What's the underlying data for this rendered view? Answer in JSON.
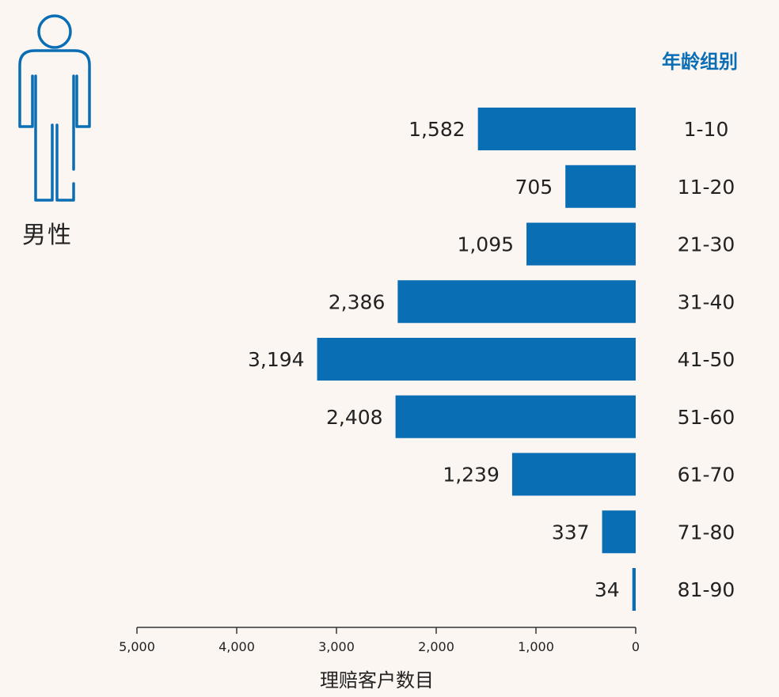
{
  "colors": {
    "bar": "#0a6eb4",
    "accent": "#0a6eb4",
    "text": "#222222",
    "background": "#fcf6f3"
  },
  "icon": "male-person-icon",
  "chart_data": {
    "type": "bar",
    "orientation": "horizontal",
    "direction": "right-to-left",
    "title": "",
    "gender_label": "男性",
    "category_header": "年龄组别",
    "xlabel": "理赔客户数目",
    "categories": [
      "1-10",
      "11-20",
      "21-30",
      "31-40",
      "41-50",
      "51-60",
      "61-70",
      "71-80",
      "81-90"
    ],
    "values": [
      1582,
      705,
      1095,
      2386,
      3194,
      2408,
      1239,
      337,
      34
    ],
    "value_labels": [
      "1,582",
      "705",
      "1,095",
      "2,386",
      "3,194",
      "2,408",
      "1,239",
      "337",
      "34"
    ],
    "xlim": [
      0,
      5000
    ],
    "xticks": [
      5000,
      4000,
      3000,
      2000,
      1000,
      0
    ],
    "xtick_labels": [
      "5,000",
      "4,000",
      "3,000",
      "2,000",
      "1,000",
      "0"
    ],
    "grid": false,
    "legend": "none"
  }
}
